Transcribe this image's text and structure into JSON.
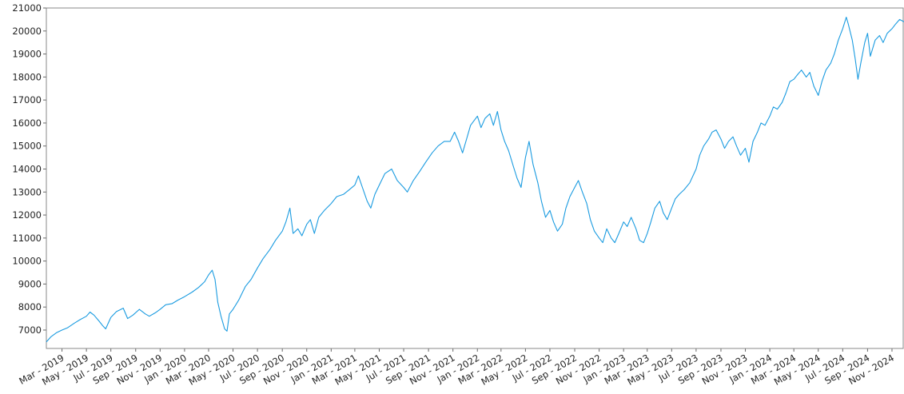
{
  "chart_data": {
    "type": "line",
    "title": "",
    "xlabel": "",
    "ylabel": "",
    "ylim": [
      6200,
      21000
    ],
    "xlim": [
      "2019-01-21",
      "2024-12-01"
    ],
    "grid": false,
    "legend": "none",
    "colors": {
      "line": "#1a9be0",
      "axis": "#666666",
      "frame": "#888888",
      "text": "#222222"
    },
    "y_ticks": [
      "7000",
      "8000",
      "9000",
      "10000",
      "11000",
      "12000",
      "13000",
      "14000",
      "15000",
      "16000",
      "17000",
      "18000",
      "19000",
      "20000",
      "21000"
    ],
    "x_ticks": [
      {
        "date": "2019-03-01",
        "label": "Mar - 2019"
      },
      {
        "date": "2019-05-01",
        "label": "May - 2019"
      },
      {
        "date": "2019-07-01",
        "label": "Jul - 2019"
      },
      {
        "date": "2019-09-01",
        "label": "Sep - 2019"
      },
      {
        "date": "2019-11-01",
        "label": "Nov - 2019"
      },
      {
        "date": "2020-01-01",
        "label": "Jan - 2020"
      },
      {
        "date": "2020-03-01",
        "label": "Mar - 2020"
      },
      {
        "date": "2020-05-01",
        "label": "May - 2020"
      },
      {
        "date": "2020-07-01",
        "label": "Jul - 2020"
      },
      {
        "date": "2020-09-01",
        "label": "Sep - 2020"
      },
      {
        "date": "2020-11-01",
        "label": "Nov - 2020"
      },
      {
        "date": "2021-01-01",
        "label": "Jan - 2021"
      },
      {
        "date": "2021-03-01",
        "label": "Mar - 2021"
      },
      {
        "date": "2021-05-01",
        "label": "May - 2021"
      },
      {
        "date": "2021-07-01",
        "label": "Jul - 2021"
      },
      {
        "date": "2021-09-01",
        "label": "Sep - 2021"
      },
      {
        "date": "2021-11-01",
        "label": "Nov - 2021"
      },
      {
        "date": "2022-01-01",
        "label": "Jan - 2022"
      },
      {
        "date": "2022-03-01",
        "label": "Mar - 2022"
      },
      {
        "date": "2022-05-01",
        "label": "May - 2022"
      },
      {
        "date": "2022-07-01",
        "label": "Jul - 2022"
      },
      {
        "date": "2022-09-01",
        "label": "Sep - 2022"
      },
      {
        "date": "2022-11-01",
        "label": "Nov - 2022"
      },
      {
        "date": "2023-01-01",
        "label": "Jan - 2023"
      },
      {
        "date": "2023-03-01",
        "label": "Mar - 2023"
      },
      {
        "date": "2023-05-01",
        "label": "May - 2023"
      },
      {
        "date": "2023-07-01",
        "label": "Jul - 2023"
      },
      {
        "date": "2023-09-01",
        "label": "Sep - 2023"
      },
      {
        "date": "2023-11-01",
        "label": "Nov - 2023"
      },
      {
        "date": "2024-01-01",
        "label": "Jan - 2024"
      },
      {
        "date": "2024-03-01",
        "label": "Mar - 2024"
      },
      {
        "date": "2024-05-01",
        "label": "May - 2024"
      },
      {
        "date": "2024-07-01",
        "label": "Jul - 2024"
      },
      {
        "date": "2024-09-01",
        "label": "Sep - 2024"
      },
      {
        "date": "2024-11-01",
        "label": "Nov - 2024"
      }
    ],
    "series": [
      {
        "points": [
          [
            "2019-01-21",
            6480
          ],
          [
            "2019-02-01",
            6700
          ],
          [
            "2019-02-15",
            6880
          ],
          [
            "2019-03-01",
            7000
          ],
          [
            "2019-03-15",
            7100
          ],
          [
            "2019-04-01",
            7300
          ],
          [
            "2019-04-15",
            7450
          ],
          [
            "2019-05-01",
            7600
          ],
          [
            "2019-05-10",
            7780
          ],
          [
            "2019-05-20",
            7650
          ],
          [
            "2019-06-01",
            7400
          ],
          [
            "2019-06-10",
            7200
          ],
          [
            "2019-06-18",
            7050
          ],
          [
            "2019-07-01",
            7550
          ],
          [
            "2019-07-15",
            7800
          ],
          [
            "2019-08-01",
            7950
          ],
          [
            "2019-08-12",
            7500
          ],
          [
            "2019-08-25",
            7650
          ],
          [
            "2019-09-10",
            7900
          ],
          [
            "2019-09-25",
            7700
          ],
          [
            "2019-10-05",
            7600
          ],
          [
            "2019-10-20",
            7750
          ],
          [
            "2019-11-01",
            7900
          ],
          [
            "2019-11-15",
            8100
          ],
          [
            "2019-12-01",
            8150
          ],
          [
            "2019-12-15",
            8300
          ],
          [
            "2020-01-01",
            8450
          ],
          [
            "2020-01-20",
            8650
          ],
          [
            "2020-02-05",
            8850
          ],
          [
            "2020-02-20",
            9100
          ],
          [
            "2020-03-01",
            9400
          ],
          [
            "2020-03-10",
            9600
          ],
          [
            "2020-03-17",
            9200
          ],
          [
            "2020-03-24",
            8200
          ],
          [
            "2020-04-01",
            7600
          ],
          [
            "2020-04-10",
            7050
          ],
          [
            "2020-04-16",
            6950
          ],
          [
            "2020-04-22",
            7700
          ],
          [
            "2020-05-01",
            7900
          ],
          [
            "2020-05-15",
            8300
          ],
          [
            "2020-06-01",
            8900
          ],
          [
            "2020-06-15",
            9200
          ],
          [
            "2020-07-01",
            9700
          ],
          [
            "2020-07-15",
            10100
          ],
          [
            "2020-08-01",
            10500
          ],
          [
            "2020-08-15",
            10900
          ],
          [
            "2020-09-01",
            11300
          ],
          [
            "2020-09-10",
            11700
          ],
          [
            "2020-09-20",
            12300
          ],
          [
            "2020-09-28",
            11200
          ],
          [
            "2020-10-10",
            11400
          ],
          [
            "2020-10-20",
            11100
          ],
          [
            "2020-11-01",
            11600
          ],
          [
            "2020-11-10",
            11800
          ],
          [
            "2020-11-20",
            11200
          ],
          [
            "2020-12-01",
            11900
          ],
          [
            "2020-12-15",
            12200
          ],
          [
            "2021-01-01",
            12500
          ],
          [
            "2021-01-15",
            12800
          ],
          [
            "2021-02-01",
            12900
          ],
          [
            "2021-02-15",
            13100
          ],
          [
            "2021-03-01",
            13300
          ],
          [
            "2021-03-10",
            13700
          ],
          [
            "2021-03-20",
            13200
          ],
          [
            "2021-04-01",
            12600
          ],
          [
            "2021-04-10",
            12300
          ],
          [
            "2021-04-20",
            12900
          ],
          [
            "2021-05-01",
            13300
          ],
          [
            "2021-05-15",
            13800
          ],
          [
            "2021-06-01",
            14000
          ],
          [
            "2021-06-15",
            13500
          ],
          [
            "2021-07-01",
            13200
          ],
          [
            "2021-07-10",
            13000
          ],
          [
            "2021-07-25",
            13500
          ],
          [
            "2021-08-10",
            13900
          ],
          [
            "2021-08-25",
            14300
          ],
          [
            "2021-09-10",
            14700
          ],
          [
            "2021-09-25",
            15000
          ],
          [
            "2021-10-10",
            15200
          ],
          [
            "2021-10-25",
            15200
          ],
          [
            "2021-11-05",
            15600
          ],
          [
            "2021-11-15",
            15200
          ],
          [
            "2021-11-25",
            14700
          ],
          [
            "2021-12-05",
            15300
          ],
          [
            "2021-12-15",
            15900
          ],
          [
            "2022-01-01",
            16300
          ],
          [
            "2022-01-10",
            15800
          ],
          [
            "2022-01-20",
            16200
          ],
          [
            "2022-02-01",
            16400
          ],
          [
            "2022-02-10",
            15900
          ],
          [
            "2022-02-20",
            16500
          ],
          [
            "2022-03-01",
            15700
          ],
          [
            "2022-03-10",
            15200
          ],
          [
            "2022-03-20",
            14800
          ],
          [
            "2022-04-01",
            14100
          ],
          [
            "2022-04-10",
            13600
          ],
          [
            "2022-04-20",
            13200
          ],
          [
            "2022-05-01",
            14500
          ],
          [
            "2022-05-10",
            15200
          ],
          [
            "2022-05-20",
            14200
          ],
          [
            "2022-06-01",
            13400
          ],
          [
            "2022-06-10",
            12600
          ],
          [
            "2022-06-20",
            11900
          ],
          [
            "2022-07-01",
            12200
          ],
          [
            "2022-07-10",
            11700
          ],
          [
            "2022-07-20",
            11300
          ],
          [
            "2022-08-01",
            11600
          ],
          [
            "2022-08-10",
            12300
          ],
          [
            "2022-08-20",
            12800
          ],
          [
            "2022-09-01",
            13200
          ],
          [
            "2022-09-10",
            13500
          ],
          [
            "2022-09-20",
            13000
          ],
          [
            "2022-10-01",
            12500
          ],
          [
            "2022-10-10",
            11800
          ],
          [
            "2022-10-20",
            11300
          ],
          [
            "2022-11-01",
            11000
          ],
          [
            "2022-11-10",
            10800
          ],
          [
            "2022-11-20",
            11400
          ],
          [
            "2022-12-01",
            11000
          ],
          [
            "2022-12-10",
            10800
          ],
          [
            "2022-12-20",
            11200
          ],
          [
            "2023-01-01",
            11700
          ],
          [
            "2023-01-10",
            11500
          ],
          [
            "2023-01-20",
            11900
          ],
          [
            "2023-02-01",
            11400
          ],
          [
            "2023-02-10",
            10900
          ],
          [
            "2023-02-20",
            10800
          ],
          [
            "2023-03-01",
            11200
          ],
          [
            "2023-03-10",
            11700
          ],
          [
            "2023-03-20",
            12300
          ],
          [
            "2023-04-01",
            12600
          ],
          [
            "2023-04-10",
            12100
          ],
          [
            "2023-04-20",
            11800
          ],
          [
            "2023-05-01",
            12300
          ],
          [
            "2023-05-10",
            12700
          ],
          [
            "2023-05-20",
            12900
          ],
          [
            "2023-06-01",
            13100
          ],
          [
            "2023-06-15",
            13400
          ],
          [
            "2023-07-01",
            14000
          ],
          [
            "2023-07-10",
            14600
          ],
          [
            "2023-07-20",
            15000
          ],
          [
            "2023-08-01",
            15300
          ],
          [
            "2023-08-10",
            15600
          ],
          [
            "2023-08-20",
            15700
          ],
          [
            "2023-09-01",
            15300
          ],
          [
            "2023-09-10",
            14900
          ],
          [
            "2023-09-20",
            15200
          ],
          [
            "2023-10-01",
            15400
          ],
          [
            "2023-10-10",
            15000
          ],
          [
            "2023-10-20",
            14600
          ],
          [
            "2023-11-01",
            14900
          ],
          [
            "2023-11-10",
            14300
          ],
          [
            "2023-11-20",
            15200
          ],
          [
            "2023-12-01",
            15600
          ],
          [
            "2023-12-10",
            16000
          ],
          [
            "2023-12-20",
            15900
          ],
          [
            "2024-01-01",
            16300
          ],
          [
            "2024-01-10",
            16700
          ],
          [
            "2024-01-20",
            16600
          ],
          [
            "2024-02-01",
            16900
          ],
          [
            "2024-02-10",
            17300
          ],
          [
            "2024-02-20",
            17800
          ],
          [
            "2024-03-01",
            17900
          ],
          [
            "2024-03-10",
            18100
          ],
          [
            "2024-03-20",
            18300
          ],
          [
            "2024-04-01",
            18000
          ],
          [
            "2024-04-10",
            18200
          ],
          [
            "2024-04-20",
            17600
          ],
          [
            "2024-05-01",
            17200
          ],
          [
            "2024-05-10",
            17800
          ],
          [
            "2024-05-20",
            18300
          ],
          [
            "2024-06-01",
            18600
          ],
          [
            "2024-06-10",
            19000
          ],
          [
            "2024-06-20",
            19600
          ],
          [
            "2024-07-01",
            20100
          ],
          [
            "2024-07-10",
            20600
          ],
          [
            "2024-07-15",
            20300
          ],
          [
            "2024-07-25",
            19600
          ],
          [
            "2024-08-01",
            18800
          ],
          [
            "2024-08-08",
            17900
          ],
          [
            "2024-08-15",
            18600
          ],
          [
            "2024-08-25",
            19500
          ],
          [
            "2024-09-01",
            19900
          ],
          [
            "2024-09-08",
            18900
          ],
          [
            "2024-09-20",
            19600
          ],
          [
            "2024-10-01",
            19800
          ],
          [
            "2024-10-10",
            19500
          ],
          [
            "2024-10-20",
            19900
          ],
          [
            "2024-11-01",
            20100
          ],
          [
            "2024-11-10",
            20300
          ],
          [
            "2024-11-20",
            20500
          ],
          [
            "2024-12-01",
            20400
          ]
        ]
      }
    ]
  }
}
